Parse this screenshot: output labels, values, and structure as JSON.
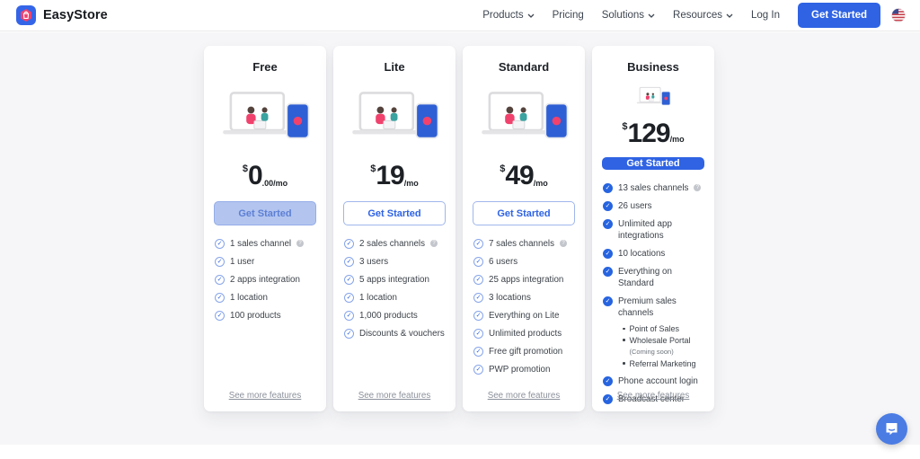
{
  "brand": {
    "name": "EasyStore"
  },
  "nav": {
    "items": [
      {
        "label": "Products",
        "dropdown": true
      },
      {
        "label": "Pricing",
        "dropdown": false
      },
      {
        "label": "Solutions",
        "dropdown": true
      },
      {
        "label": "Resources",
        "dropdown": true
      },
      {
        "label": "Log In",
        "dropdown": false
      }
    ],
    "cta_label": "Get Started",
    "flag": "us-flag-icon"
  },
  "colors": {
    "accent_blue": "#2f63e4",
    "disabled_button_bg": "#b3c5ef",
    "pink": "#f0426d",
    "page_bg": "#f6f6f8",
    "link_gray": "#8b909a"
  },
  "plans": [
    {
      "name": "Free",
      "currency": "$",
      "amount": "0",
      "suffix": ".00/mo",
      "button": {
        "label": "Get Started",
        "style": "disabled"
      },
      "check_style": "outline",
      "features": [
        {
          "text": "1 sales channel",
          "info": true
        },
        {
          "text": "1 user"
        },
        {
          "text": "2 apps integration"
        },
        {
          "text": "1 location"
        },
        {
          "text": "100 products"
        }
      ],
      "more_label": "See more features"
    },
    {
      "name": "Lite",
      "currency": "$",
      "amount": "19",
      "suffix": "/mo",
      "button": {
        "label": "Get Started",
        "style": "outline"
      },
      "check_style": "outline",
      "features": [
        {
          "text": "2 sales channels",
          "info": true
        },
        {
          "text": "3 users"
        },
        {
          "text": "5 apps integration"
        },
        {
          "text": "1 location"
        },
        {
          "text": "1,000 products"
        },
        {
          "text": "Discounts & vouchers"
        }
      ],
      "more_label": "See more features"
    },
    {
      "name": "Standard",
      "currency": "$",
      "amount": "49",
      "suffix": "/mo",
      "button": {
        "label": "Get Started",
        "style": "outline"
      },
      "check_style": "outline",
      "features": [
        {
          "text": "7 sales channels",
          "info": true
        },
        {
          "text": "6 users"
        },
        {
          "text": "25 apps integration"
        },
        {
          "text": "3 locations"
        },
        {
          "text": "Everything on Lite"
        },
        {
          "text": "Unlimited products"
        },
        {
          "text": "Free gift promotion"
        },
        {
          "text": "PWP promotion"
        }
      ],
      "more_label": "See more features"
    },
    {
      "name": "Business",
      "currency": "$",
      "amount": "129",
      "suffix": "/mo",
      "button": {
        "label": "Get Started",
        "style": "solid"
      },
      "check_style": "filled",
      "features": [
        {
          "text": "13 sales channels",
          "info": true
        },
        {
          "text": "26 users"
        },
        {
          "text": "Unlimited app integrations"
        },
        {
          "text": "10 locations"
        },
        {
          "text": "Everything on Standard"
        },
        {
          "text": "Premium sales channels",
          "sub": [
            {
              "text": "Point of Sales",
              "note": ""
            },
            {
              "text": "Wholesale Portal",
              "note": "(Coming soon)"
            },
            {
              "text": "Referral Marketing",
              "note": ""
            }
          ]
        },
        {
          "text": "Phone account login"
        },
        {
          "text": "Broadcast center"
        }
      ],
      "more_label": "See more features"
    }
  ],
  "chat": {
    "icon": "chat-bubble-icon"
  }
}
